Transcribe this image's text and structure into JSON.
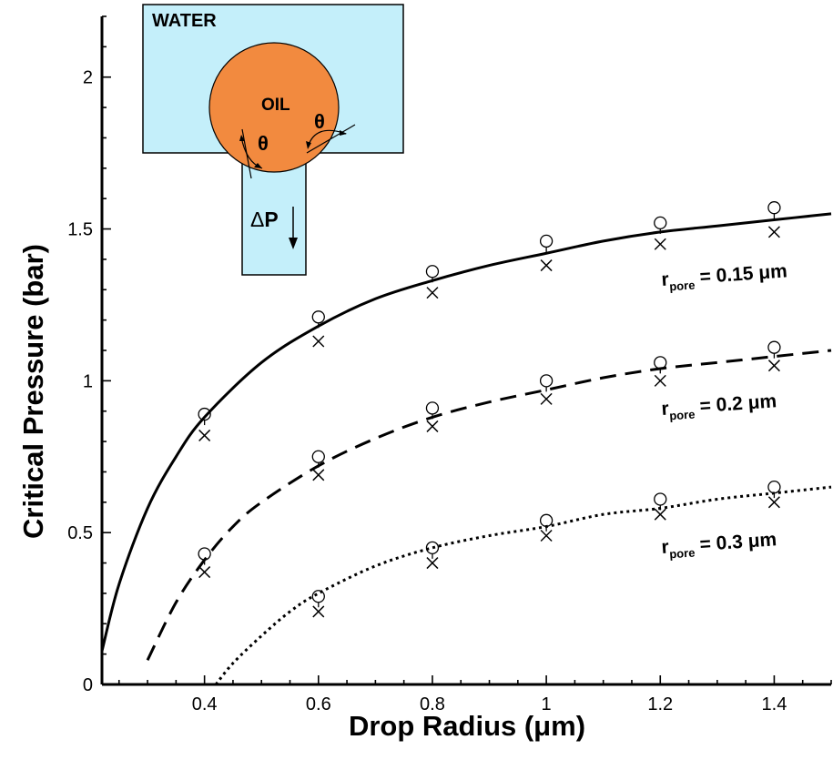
{
  "chart_data": {
    "type": "line",
    "xlabel": "Drop Radius (μm)",
    "ylabel": "Critical Pressure (bar)",
    "xlim": [
      0.22,
      1.5
    ],
    "ylim": [
      0,
      2.2
    ],
    "xticks": [
      0.4,
      0.6,
      0.8,
      1.0,
      1.2,
      1.4
    ],
    "xtick_labels": [
      "0.4",
      "0.6",
      "0.8",
      "1",
      "1.2",
      "1.4"
    ],
    "yticks": [
      0,
      0.5,
      1.0,
      1.5,
      2.0
    ],
    "ytick_labels": [
      "0",
      "0.5",
      "1",
      "1.5",
      "2"
    ],
    "series": [
      {
        "label_main": "r",
        "label_sub": "pore",
        "label_rest": " = 0.15 μm",
        "style": "solid",
        "curve": {
          "x": [
            0.22,
            0.25,
            0.3,
            0.35,
            0.4,
            0.5,
            0.6,
            0.7,
            0.8,
            0.9,
            1.0,
            1.1,
            1.2,
            1.3,
            1.4,
            1.5
          ],
          "y": [
            0.11,
            0.33,
            0.58,
            0.75,
            0.88,
            1.06,
            1.18,
            1.27,
            1.33,
            1.38,
            1.42,
            1.46,
            1.49,
            1.51,
            1.53,
            1.55
          ]
        },
        "markers_circle": {
          "x": [
            0.4,
            0.6,
            0.8,
            1.0,
            1.2,
            1.4
          ],
          "y": [
            0.89,
            1.21,
            1.36,
            1.46,
            1.52,
            1.57
          ]
        },
        "markers_cross": {
          "x": [
            0.4,
            0.6,
            0.8,
            1.0,
            1.2,
            1.4
          ],
          "y": [
            0.82,
            1.13,
            1.29,
            1.38,
            1.45,
            1.49
          ]
        }
      },
      {
        "label_main": "r",
        "label_sub": "pore",
        "label_rest": " = 0.2 μm",
        "style": "dashed",
        "curve": {
          "x": [
            0.3,
            0.35,
            0.4,
            0.45,
            0.5,
            0.6,
            0.7,
            0.8,
            0.9,
            1.0,
            1.1,
            1.2,
            1.3,
            1.4,
            1.5
          ],
          "y": [
            0.08,
            0.27,
            0.41,
            0.52,
            0.6,
            0.72,
            0.81,
            0.88,
            0.93,
            0.97,
            1.01,
            1.04,
            1.06,
            1.08,
            1.1
          ]
        },
        "markers_circle": {
          "x": [
            0.4,
            0.6,
            0.8,
            1.0,
            1.2,
            1.4
          ],
          "y": [
            0.43,
            0.75,
            0.91,
            1.0,
            1.06,
            1.11
          ]
        },
        "markers_cross": {
          "x": [
            0.4,
            0.6,
            0.8,
            1.0,
            1.2,
            1.4
          ],
          "y": [
            0.37,
            0.69,
            0.85,
            0.94,
            1.0,
            1.05
          ]
        }
      },
      {
        "label_main": "r",
        "label_sub": "pore",
        "label_rest": " = 0.3 μm",
        "style": "dotted",
        "curve": {
          "x": [
            0.42,
            0.45,
            0.5,
            0.55,
            0.6,
            0.7,
            0.8,
            0.9,
            1.0,
            1.1,
            1.2,
            1.3,
            1.4,
            1.5
          ],
          "y": [
            0.0,
            0.07,
            0.16,
            0.24,
            0.3,
            0.39,
            0.45,
            0.49,
            0.52,
            0.56,
            0.58,
            0.61,
            0.63,
            0.65
          ]
        },
        "markers_circle": {
          "x": [
            0.6,
            0.8,
            1.0,
            1.2,
            1.4
          ],
          "y": [
            0.29,
            0.45,
            0.54,
            0.61,
            0.65
          ]
        },
        "markers_cross": {
          "x": [
            0.6,
            0.8,
            1.0,
            1.2,
            1.4
          ],
          "y": [
            0.24,
            0.4,
            0.49,
            0.56,
            0.6
          ]
        }
      }
    ]
  },
  "inset": {
    "water_label": "WATER",
    "oil_label": "OIL",
    "theta_label": "θ",
    "pressure_delta": "Δ",
    "pressure_letter": "P",
    "colors": {
      "water": "#c4effa",
      "oil": "#f28a3f"
    }
  }
}
